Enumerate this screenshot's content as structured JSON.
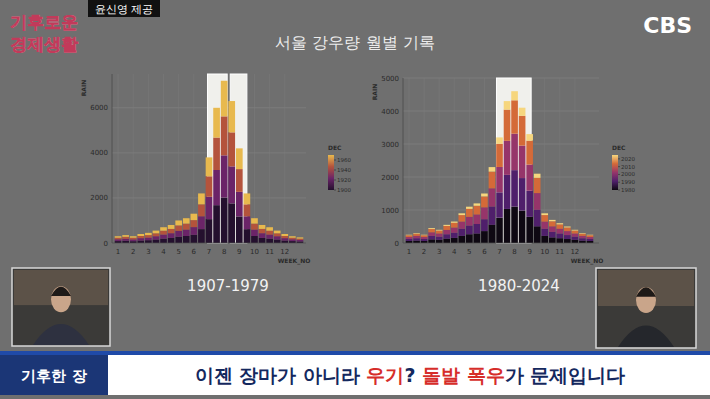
{
  "header": {
    "logo": [
      "기후로운",
      "경제생활"
    ],
    "credit": "윤신영 제공",
    "channel": "CBS",
    "title": "서울 강우량 월별 기록"
  },
  "chart_data": [
    {
      "type": "bar",
      "stacked": true,
      "grid": true,
      "title": "1907-1979",
      "x_label": "WEEK_NO",
      "y_label": "RAIN",
      "x": [
        1,
        1.5,
        2,
        2.5,
        3,
        3.5,
        4,
        4.5,
        5,
        5.5,
        6,
        6.5,
        7,
        7.5,
        8,
        8.5,
        9,
        9.5,
        10,
        10.5,
        11,
        11.5,
        12,
        12.5,
        13
      ],
      "xlim": [
        0.6,
        13.4
      ],
      "xticks": [
        1,
        2,
        3,
        4,
        5,
        6,
        7,
        8,
        9,
        10,
        11,
        12
      ],
      "ylim": [
        0,
        7500
      ],
      "yticks": [
        0,
        2000,
        4000,
        6000
      ],
      "highlights": [
        [
          6.9,
          8.2
        ],
        [
          8.4,
          9.5
        ]
      ],
      "colorbar": {
        "title": "DEC",
        "range": [
          1900,
          1970
        ],
        "ticks": [
          1900,
          1920,
          1940,
          1960
        ]
      },
      "series": [
        {
          "color": "#24102e",
          "values": [
            85,
            100,
            80,
            110,
            125,
            155,
            195,
            225,
            280,
            310,
            365,
            615,
            1060,
            1680,
            2020,
            1760,
            1180,
            615,
            310,
            225,
            195,
            155,
            110,
            85,
            70
          ]
        },
        {
          "color": "#6b2468",
          "values": [
            80,
            90,
            80,
            105,
            115,
            145,
            180,
            210,
            260,
            285,
            340,
            570,
            990,
            1560,
            1870,
            1640,
            1090,
            570,
            285,
            210,
            180,
            145,
            105,
            80,
            65
          ]
        },
        {
          "color": "#b4533c",
          "values": [
            70,
            85,
            75,
            95,
            110,
            130,
            170,
            190,
            240,
            265,
            310,
            530,
            910,
            1440,
            1730,
            1510,
            1010,
            530,
            265,
            190,
            170,
            130,
            95,
            70,
            60
          ]
        },
        {
          "color": "#e8b94e",
          "values": [
            65,
            75,
            65,
            90,
            100,
            120,
            155,
            175,
            220,
            240,
            285,
            485,
            840,
            1320,
            1580,
            1390,
            920,
            485,
            240,
            175,
            155,
            120,
            90,
            65,
            55
          ]
        }
      ]
    },
    {
      "type": "bar",
      "stacked": true,
      "grid": true,
      "title": "1980-2024",
      "x_label": "WEEK_NO",
      "y_label": "RAIN",
      "x": [
        1,
        1.5,
        2,
        2.5,
        3,
        3.5,
        4,
        4.5,
        5,
        5.5,
        6,
        6.5,
        7,
        7.5,
        8,
        8.5,
        9,
        9.5,
        10,
        10.5,
        11,
        11.5,
        12,
        12.5,
        13
      ],
      "xlim": [
        0.6,
        13.6
      ],
      "xticks": [
        1,
        2,
        3,
        4,
        5,
        6,
        7,
        8,
        9,
        10,
        11,
        12
      ],
      "ylim": [
        0,
        5000
      ],
      "yticks": [
        0,
        1000,
        2000,
        3000,
        4000,
        5000
      ],
      "highlights": [
        [
          6.8,
          9.1
        ]
      ],
      "colorbar": {
        "title": "DEC",
        "range": [
          1980,
          2025
        ],
        "ticks": [
          1980,
          1990,
          2000,
          2010,
          2020
        ]
      },
      "series": [
        {
          "color": "#0e0812",
          "values": [
            60,
            72,
            60,
            108,
            96,
            132,
            156,
            216,
            264,
            288,
            360,
            552,
            768,
            1032,
            1104,
            984,
            792,
            504,
            216,
            168,
            144,
            120,
            96,
            72,
            60
          ]
        },
        {
          "color": "#4f1f6b",
          "values": [
            60,
            72,
            60,
            108,
            96,
            132,
            156,
            216,
            264,
            288,
            360,
            552,
            768,
            1032,
            1104,
            984,
            792,
            504,
            216,
            168,
            144,
            120,
            96,
            72,
            60
          ]
        },
        {
          "color": "#96356a",
          "values": [
            60,
            72,
            60,
            108,
            96,
            132,
            156,
            216,
            264,
            288,
            360,
            552,
            768,
            1032,
            1104,
            984,
            792,
            504,
            216,
            168,
            144,
            120,
            96,
            72,
            60
          ]
        },
        {
          "color": "#d46a38",
          "values": [
            55,
            66,
            55,
            99,
            88,
            121,
            143,
            198,
            242,
            264,
            330,
            506,
            704,
            946,
            1012,
            902,
            726,
            462,
            198,
            154,
            132,
            110,
            88,
            66,
            55
          ]
        },
        {
          "color": "#f6d67e",
          "values": [
            15,
            18,
            15,
            27,
            24,
            33,
            39,
            54,
            66,
            72,
            90,
            138,
            192,
            258,
            276,
            246,
            198,
            126,
            54,
            42,
            36,
            30,
            24,
            18,
            15
          ]
        }
      ]
    }
  ],
  "banner": {
    "tag": "기후한 장",
    "headline": [
      {
        "text": "이젠 장마가 아니라 ",
        "color": "#14285e"
      },
      {
        "text": "우기",
        "color": "#d62d2a"
      },
      {
        "text": "? ",
        "color": "#14285e"
      },
      {
        "text": "돌발 폭우",
        "color": "#d62d2a"
      },
      {
        "text": "가 문제입니다",
        "color": "#14285e"
      }
    ]
  }
}
